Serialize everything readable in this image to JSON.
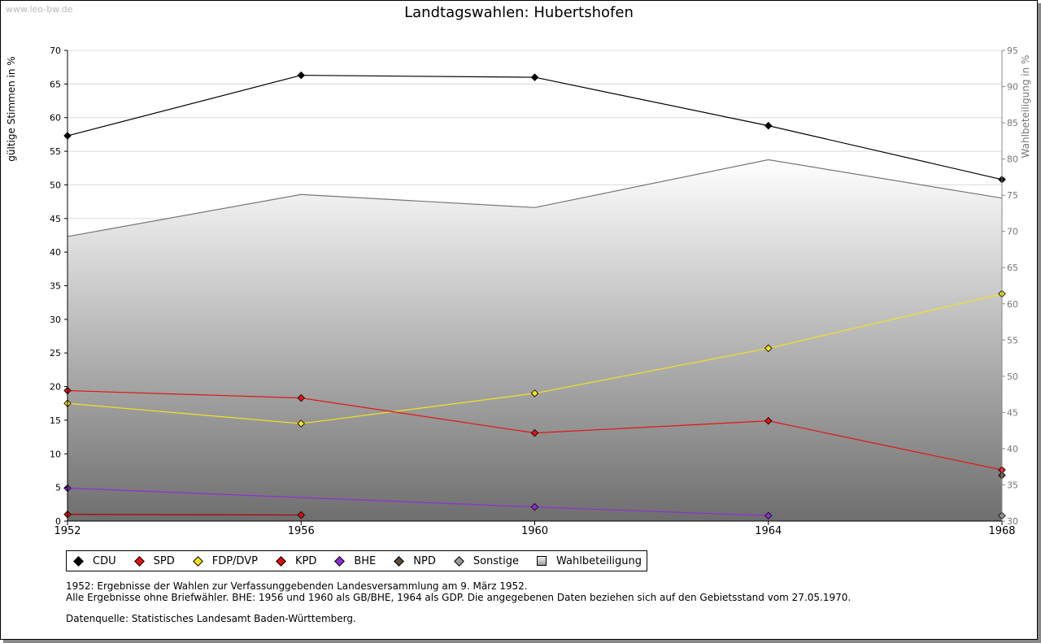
{
  "watermark": "www.leo-bw.de",
  "chart_data": {
    "type": "line",
    "title": "Landtagswahlen: Hubertshofen",
    "x": [
      "1952",
      "1956",
      "1960",
      "1964",
      "1968"
    ],
    "y_left": {
      "label": "gültige Stimmen in %",
      "min": 0,
      "max": 70,
      "step": 5
    },
    "y_right": {
      "label": "Wahlbeteiligung in %",
      "min": 30,
      "max": 95,
      "step": 5
    },
    "grid": true,
    "legend_position": "bottom",
    "turnout": {
      "name": "Wahlbeteiligung",
      "axis": "right",
      "type": "area",
      "values": [
        69.3,
        75.1,
        73.3,
        79.9,
        74.6
      ]
    },
    "series": [
      {
        "name": "CDU",
        "color": "#000000",
        "marker": "#000000",
        "values": [
          57.3,
          66.3,
          66.0,
          58.8,
          50.8
        ]
      },
      {
        "name": "SPD",
        "color": "#e31414",
        "marker": "#e31414",
        "values": [
          19.4,
          18.3,
          13.1,
          14.9,
          7.6
        ]
      },
      {
        "name": "FDP/DVP",
        "color": "#f2e41f",
        "marker": "#f2e41f",
        "values": [
          17.5,
          14.5,
          19.0,
          25.7,
          33.8
        ]
      },
      {
        "name": "KPD",
        "color": "#b30000",
        "marker": "#d81010",
        "values": [
          1.0,
          0.9,
          null,
          null,
          null
        ]
      },
      {
        "name": "BHE",
        "color": "#8d2fd6",
        "marker": "#8d2fd6",
        "values": [
          4.9,
          null,
          2.1,
          0.8,
          null
        ]
      },
      {
        "name": "NPD",
        "color": "#5c4a3a",
        "marker": "#5c4a3a",
        "values": [
          null,
          null,
          null,
          null,
          6.8
        ]
      },
      {
        "name": "Sonstige",
        "color": "#9a9a9a",
        "marker": "#9a9a9a",
        "values": [
          null,
          null,
          null,
          null,
          0.8
        ]
      }
    ]
  },
  "notes": {
    "line1": "1952: Ergebnisse der Wahlen zur Verfassunggebenden Landesversammlung am 9. März 1952.",
    "line2": "Alle Ergebnisse ohne Briefwähler. BHE: 1956 und 1960 als GB/BHE, 1964 als GDP. Die angegebenen Daten beziehen sich auf den Gebietsstand vom 27.05.1970.",
    "line3": "Datenquelle: Statistisches Landesamt Baden-Württemberg."
  }
}
